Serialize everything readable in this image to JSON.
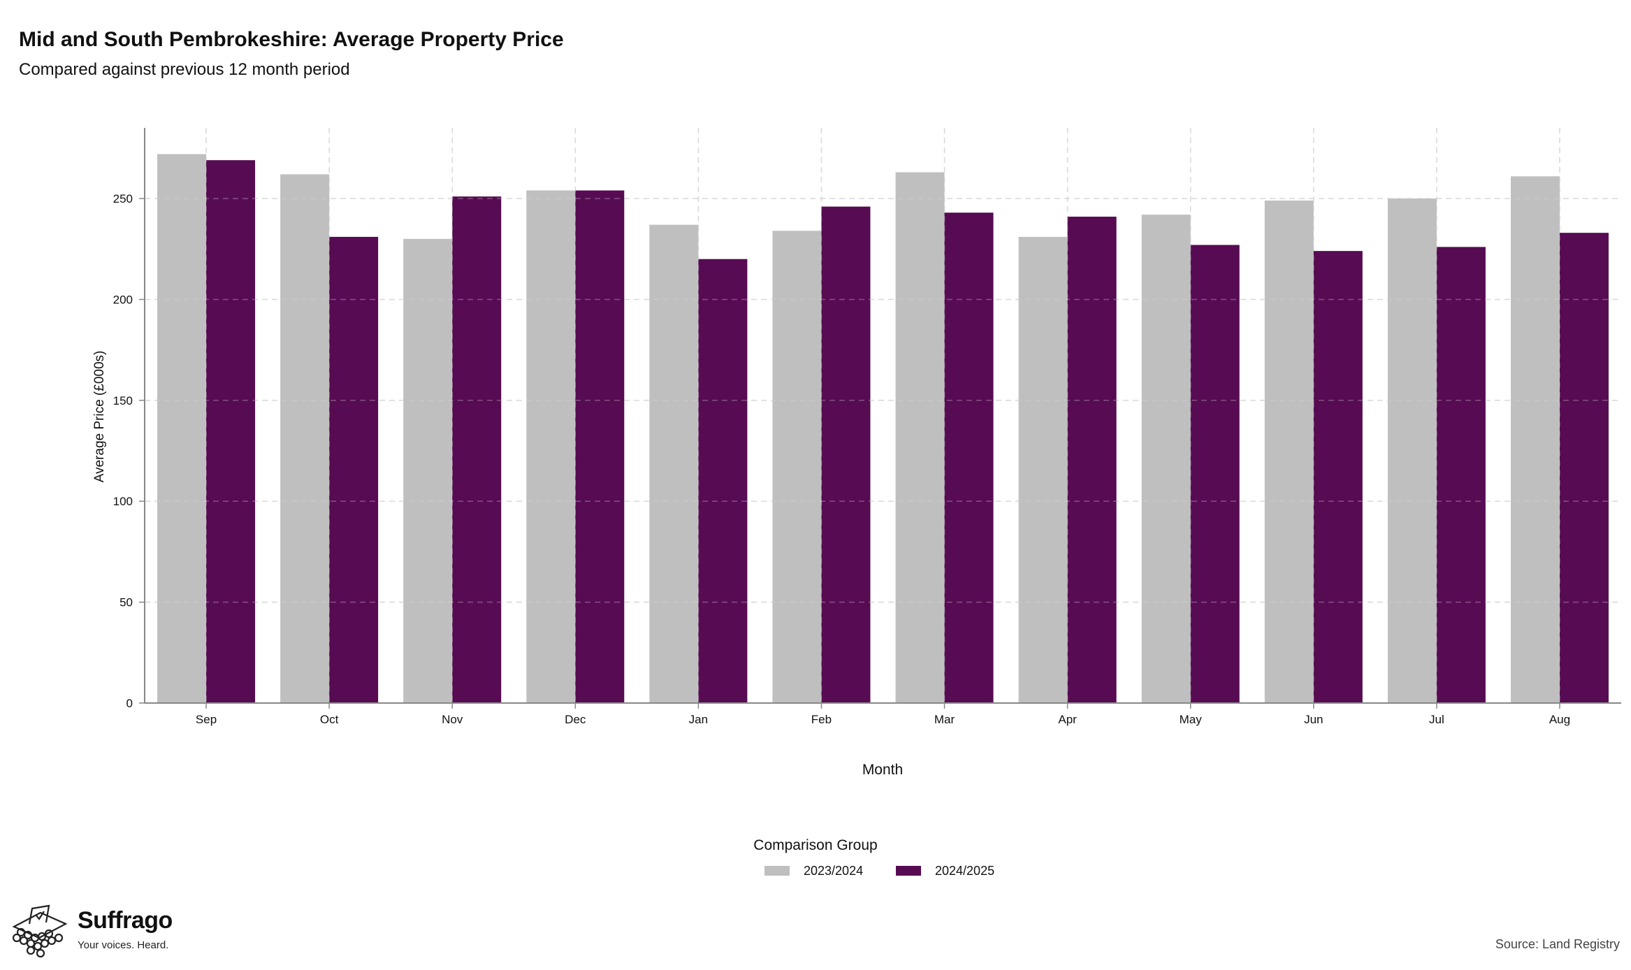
{
  "chart_data": {
    "type": "bar",
    "title": "Mid and South Pembrokeshire: Average Property Price",
    "subtitle": "Compared against previous 12 month period",
    "xlabel": "Month",
    "ylabel": "Average Price (£000s)",
    "categories": [
      "Sep",
      "Oct",
      "Nov",
      "Dec",
      "Jan",
      "Feb",
      "Mar",
      "Apr",
      "May",
      "Jun",
      "Jul",
      "Aug"
    ],
    "series": [
      {
        "name": "2023/2024",
        "color": "#bfbfbf",
        "values": [
          272,
          262,
          230,
          254,
          237,
          234,
          263,
          231,
          242,
          249,
          250,
          261
        ]
      },
      {
        "name": "2024/2025",
        "color": "#560b52",
        "values": [
          269,
          231,
          251,
          254,
          220,
          246,
          243,
          241,
          227,
          224,
          226,
          233
        ]
      }
    ],
    "ylim": [
      0,
      285
    ],
    "yticks": [
      0,
      50,
      100,
      150,
      200,
      250
    ],
    "grid": true,
    "legend_title": "Comparison Group",
    "legend_position": "bottom"
  },
  "footer": {
    "brand": "Suffrago",
    "tagline": "Your voices. Heard.",
    "source": "Source: Land Registry"
  }
}
